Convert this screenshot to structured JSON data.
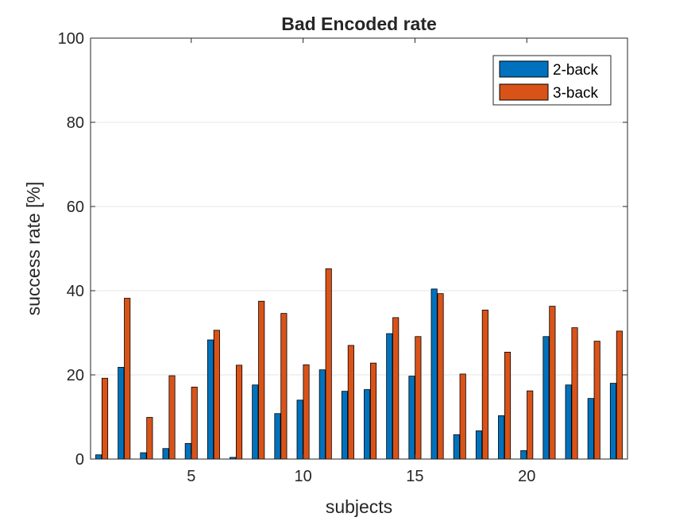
{
  "chart_data": {
    "type": "bar",
    "title": "Bad Encoded rate",
    "xlabel": "subjects",
    "ylabel": "success rate [%]",
    "xlim": [
      0.5,
      24.5
    ],
    "ylim": [
      0,
      100
    ],
    "xticks": [
      5,
      10,
      15,
      20
    ],
    "yticks": [
      0,
      20,
      40,
      60,
      80,
      100
    ],
    "grid": "horizontal",
    "legend_position": "top-right",
    "x": [
      1,
      2,
      3,
      4,
      5,
      6,
      7,
      8,
      9,
      10,
      11,
      12,
      13,
      14,
      15,
      16,
      17,
      18,
      19,
      20,
      21,
      22,
      23,
      24
    ],
    "series": [
      {
        "name": "2-back",
        "color": "#0072BD",
        "values": [
          1.0,
          21.8,
          1.5,
          2.5,
          3.7,
          28.3,
          0.4,
          17.6,
          10.8,
          14.0,
          21.2,
          16.1,
          16.5,
          29.8,
          19.7,
          40.4,
          5.8,
          6.7,
          10.3,
          2.0,
          29.1,
          17.6,
          14.4,
          18.0
        ]
      },
      {
        "name": "3-back",
        "color": "#D95319",
        "values": [
          19.2,
          38.2,
          9.9,
          19.8,
          17.1,
          30.6,
          22.3,
          37.5,
          34.6,
          22.4,
          45.2,
          27.0,
          22.8,
          33.6,
          29.1,
          39.3,
          20.2,
          35.4,
          25.4,
          16.2,
          36.3,
          31.2,
          28.0,
          30.4
        ]
      }
    ]
  }
}
